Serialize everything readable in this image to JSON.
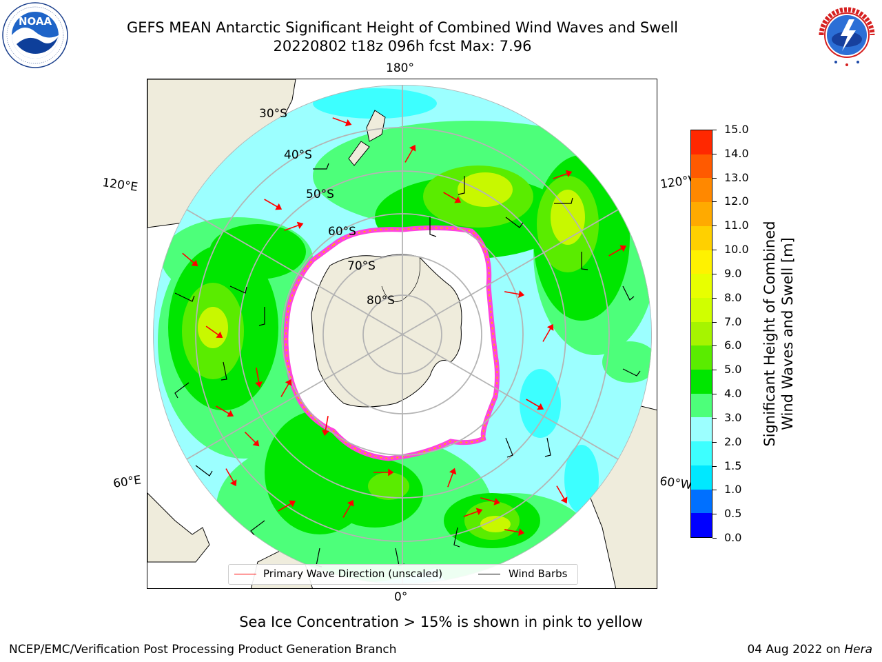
{
  "header": {
    "title_line1": "GEFS MEAN Antarctic Significant Height of Combined Wind Waves and Swell",
    "title_line2": "20220802 t18z 096h fcst   Max: 7.96"
  },
  "logos": {
    "left": "NOAA",
    "left_ring_text": "NATIONAL OCEANIC AND ATMOSPHERIC ADMINISTRATION · U.S. DEPARTMENT OF COMMERCE",
    "right_ring_text": "NATIONAL WEATHER SERVICE"
  },
  "map": {
    "projection": "south-polar-stereographic",
    "latitude_labels": [
      "30°S",
      "40°S",
      "50°S",
      "60°S",
      "70°S",
      "80°S"
    ],
    "longitude_labels": {
      "top": "180°",
      "bottom": "0°",
      "left_upper": "120°E",
      "left_lower": "60°E",
      "right_upper": "120°W",
      "right_lower": "60°W"
    },
    "colors": {
      "land": "#efecdc",
      "ice_mask": "#ffffff",
      "sea_ice_edge": "#ff44dd",
      "graticule": "#b4b4b4",
      "wave_arrow": "#ff0000",
      "wind_barb": "#000000"
    }
  },
  "legend": {
    "primary_wave": "Primary Wave Direction (unscaled)",
    "wind_barbs": "Wind Barbs"
  },
  "colorbar": {
    "label_line1": "Significant Height of Combined",
    "label_line2": "Wind Waves and Swell [m]",
    "ticks": [
      "0.0",
      "0.5",
      "1.0",
      "1.5",
      "2.0",
      "3.0",
      "4.0",
      "5.0",
      "6.0",
      "7.0",
      "8.0",
      "9.0",
      "10.0",
      "11.0",
      "12.0",
      "13.0",
      "14.0",
      "15.0"
    ],
    "colors": [
      "#0000ff",
      "#0070ff",
      "#00e8ff",
      "#3dffff",
      "#9cffff",
      "#4dff7a",
      "#00e600",
      "#5aec00",
      "#a6f400",
      "#d0ff00",
      "#e8ff00",
      "#fff200",
      "#ffd000",
      "#ffaa00",
      "#ff8800",
      "#ff5a00",
      "#ff2800"
    ]
  },
  "caption": "Sea Ice Concentration > 15% is shown in pink to yellow",
  "footer": {
    "left": "NCEP/EMC/Verification Post Processing Product Generation Branch",
    "right_date": "04 Aug 2022 on ",
    "right_host": "Hera"
  }
}
